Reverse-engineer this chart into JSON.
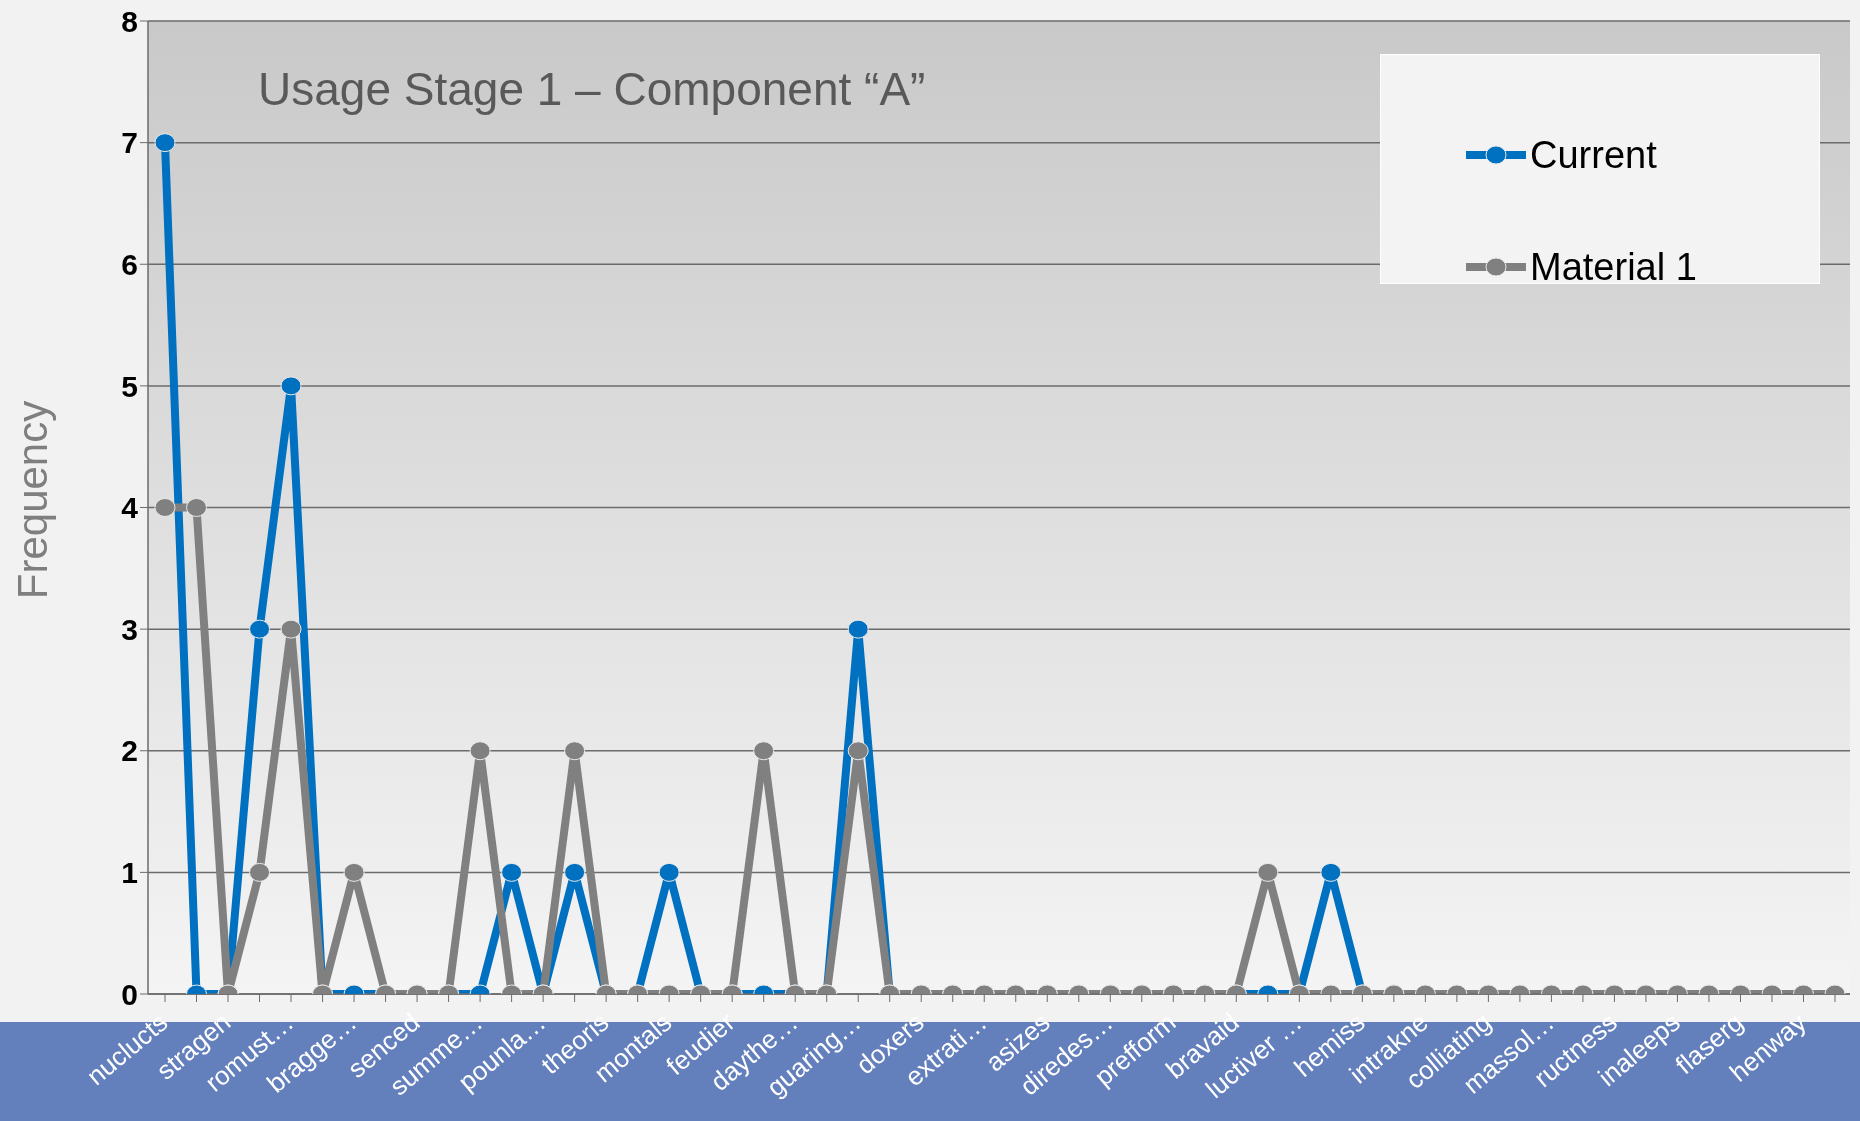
{
  "chart_data": {
    "type": "line",
    "title": "Usage Stage 1 – Component “A”",
    "ylabel": "Frequency",
    "categories": [
      "nuclucts",
      null,
      "stragen",
      null,
      "romust…",
      null,
      "bragge…",
      null,
      "senced",
      null,
      "summe…",
      null,
      "pounla…",
      null,
      "theoris",
      null,
      "montals",
      null,
      "feudier",
      null,
      "daythe…",
      null,
      "guaring…",
      null,
      "doxers",
      null,
      "extrati…",
      null,
      "asizes",
      null,
      "diredes…",
      null,
      "prefform",
      null,
      "bravaid",
      null,
      "luctiver …",
      null,
      "hemiss",
      null,
      "intrakne",
      null,
      "colliating",
      null,
      "massol…",
      null,
      "ructness",
      null,
      "inaleeps",
      null,
      "flaserg",
      null,
      "henway",
      null
    ],
    "series": [
      {
        "name": "Current",
        "color": "#0070c0",
        "values": [
          7,
          0,
          0,
          3,
          5,
          0,
          0,
          0,
          0,
          0,
          0,
          1,
          0,
          1,
          0,
          0,
          1,
          0,
          0,
          0,
          0,
          0,
          3,
          0,
          0,
          0,
          0,
          0,
          0,
          0,
          0,
          0,
          0,
          0,
          0,
          0,
          0,
          1,
          0,
          0,
          null,
          null,
          null,
          null,
          null,
          null,
          null,
          null,
          null,
          null,
          null,
          null,
          null,
          null
        ]
      },
      {
        "name": "Material 1",
        "color": "#808080",
        "values": [
          4,
          4,
          0,
          1,
          3,
          0,
          1,
          0,
          0,
          0,
          2,
          0,
          0,
          2,
          0,
          0,
          0,
          0,
          0,
          2,
          0,
          0,
          2,
          0,
          0,
          0,
          0,
          0,
          0,
          0,
          0,
          0,
          0,
          0,
          0,
          1,
          0,
          0,
          0,
          0,
          0,
          0,
          0,
          0,
          0,
          0,
          0,
          0,
          0,
          0,
          0,
          0,
          0,
          0
        ]
      }
    ],
    "ylim": [
      0,
      8
    ],
    "yticks": [
      0,
      1,
      2,
      3,
      4,
      5,
      6,
      7,
      8
    ],
    "grid": "y",
    "legend": "top right",
    "marker": "circle",
    "line_style": "solid"
  }
}
